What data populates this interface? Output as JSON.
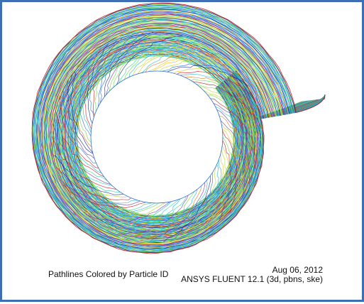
{
  "caption": {
    "title": "Pathlines Colored by Particle ID",
    "date": "Aug 06, 2012",
    "software": "ANSYS FLUENT 12.1 (3d, pbns, ske)"
  },
  "colors": {
    "frame_border": "#3d6fb6",
    "pathline_palette": [
      "#1a2a8c",
      "#2b6fd6",
      "#1fb7d8",
      "#2fd0a8",
      "#6fd64a",
      "#b7d82b",
      "#e8c21f",
      "#e07a1a",
      "#c81e1e",
      "#7a3fb0"
    ]
  }
}
